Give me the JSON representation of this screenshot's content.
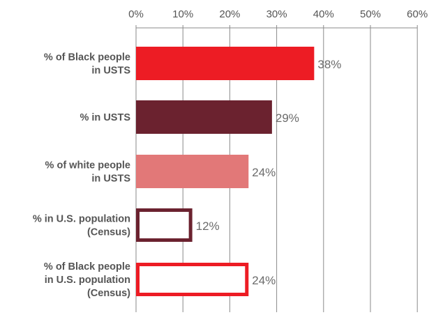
{
  "chart_data": {
    "type": "bar",
    "orientation": "horizontal",
    "x_ticks": [
      "0%",
      "10%",
      "20%",
      "30%",
      "40%",
      "50%",
      "60%"
    ],
    "xlim": [
      0,
      60
    ],
    "grid": true,
    "categories": [
      [
        "% of Black people",
        "in USTS"
      ],
      [
        "% in USTS"
      ],
      [
        "% of white people",
        "in USTS"
      ],
      [
        "% in U.S. population",
        "(Census)"
      ],
      [
        "% of Black people",
        "in U.S. population",
        "(Census)"
      ]
    ],
    "values": [
      38,
      29,
      24,
      12,
      24
    ],
    "value_labels": [
      "38%",
      "29%",
      "24%",
      "12%",
      "24%"
    ],
    "bar_styles": [
      {
        "fill": "#ed1c24",
        "stroke": "#ed1c24",
        "outline": false
      },
      {
        "fill": "#6b222f",
        "stroke": "#6b222f",
        "outline": false
      },
      {
        "fill": "#e27878",
        "stroke": "#e27878",
        "outline": false
      },
      {
        "fill": "#ffffff",
        "stroke": "#6b222f",
        "outline": true
      },
      {
        "fill": "#ffffff",
        "stroke": "#ed1c24",
        "outline": true
      }
    ],
    "grid_color": "#8a8a8a"
  }
}
